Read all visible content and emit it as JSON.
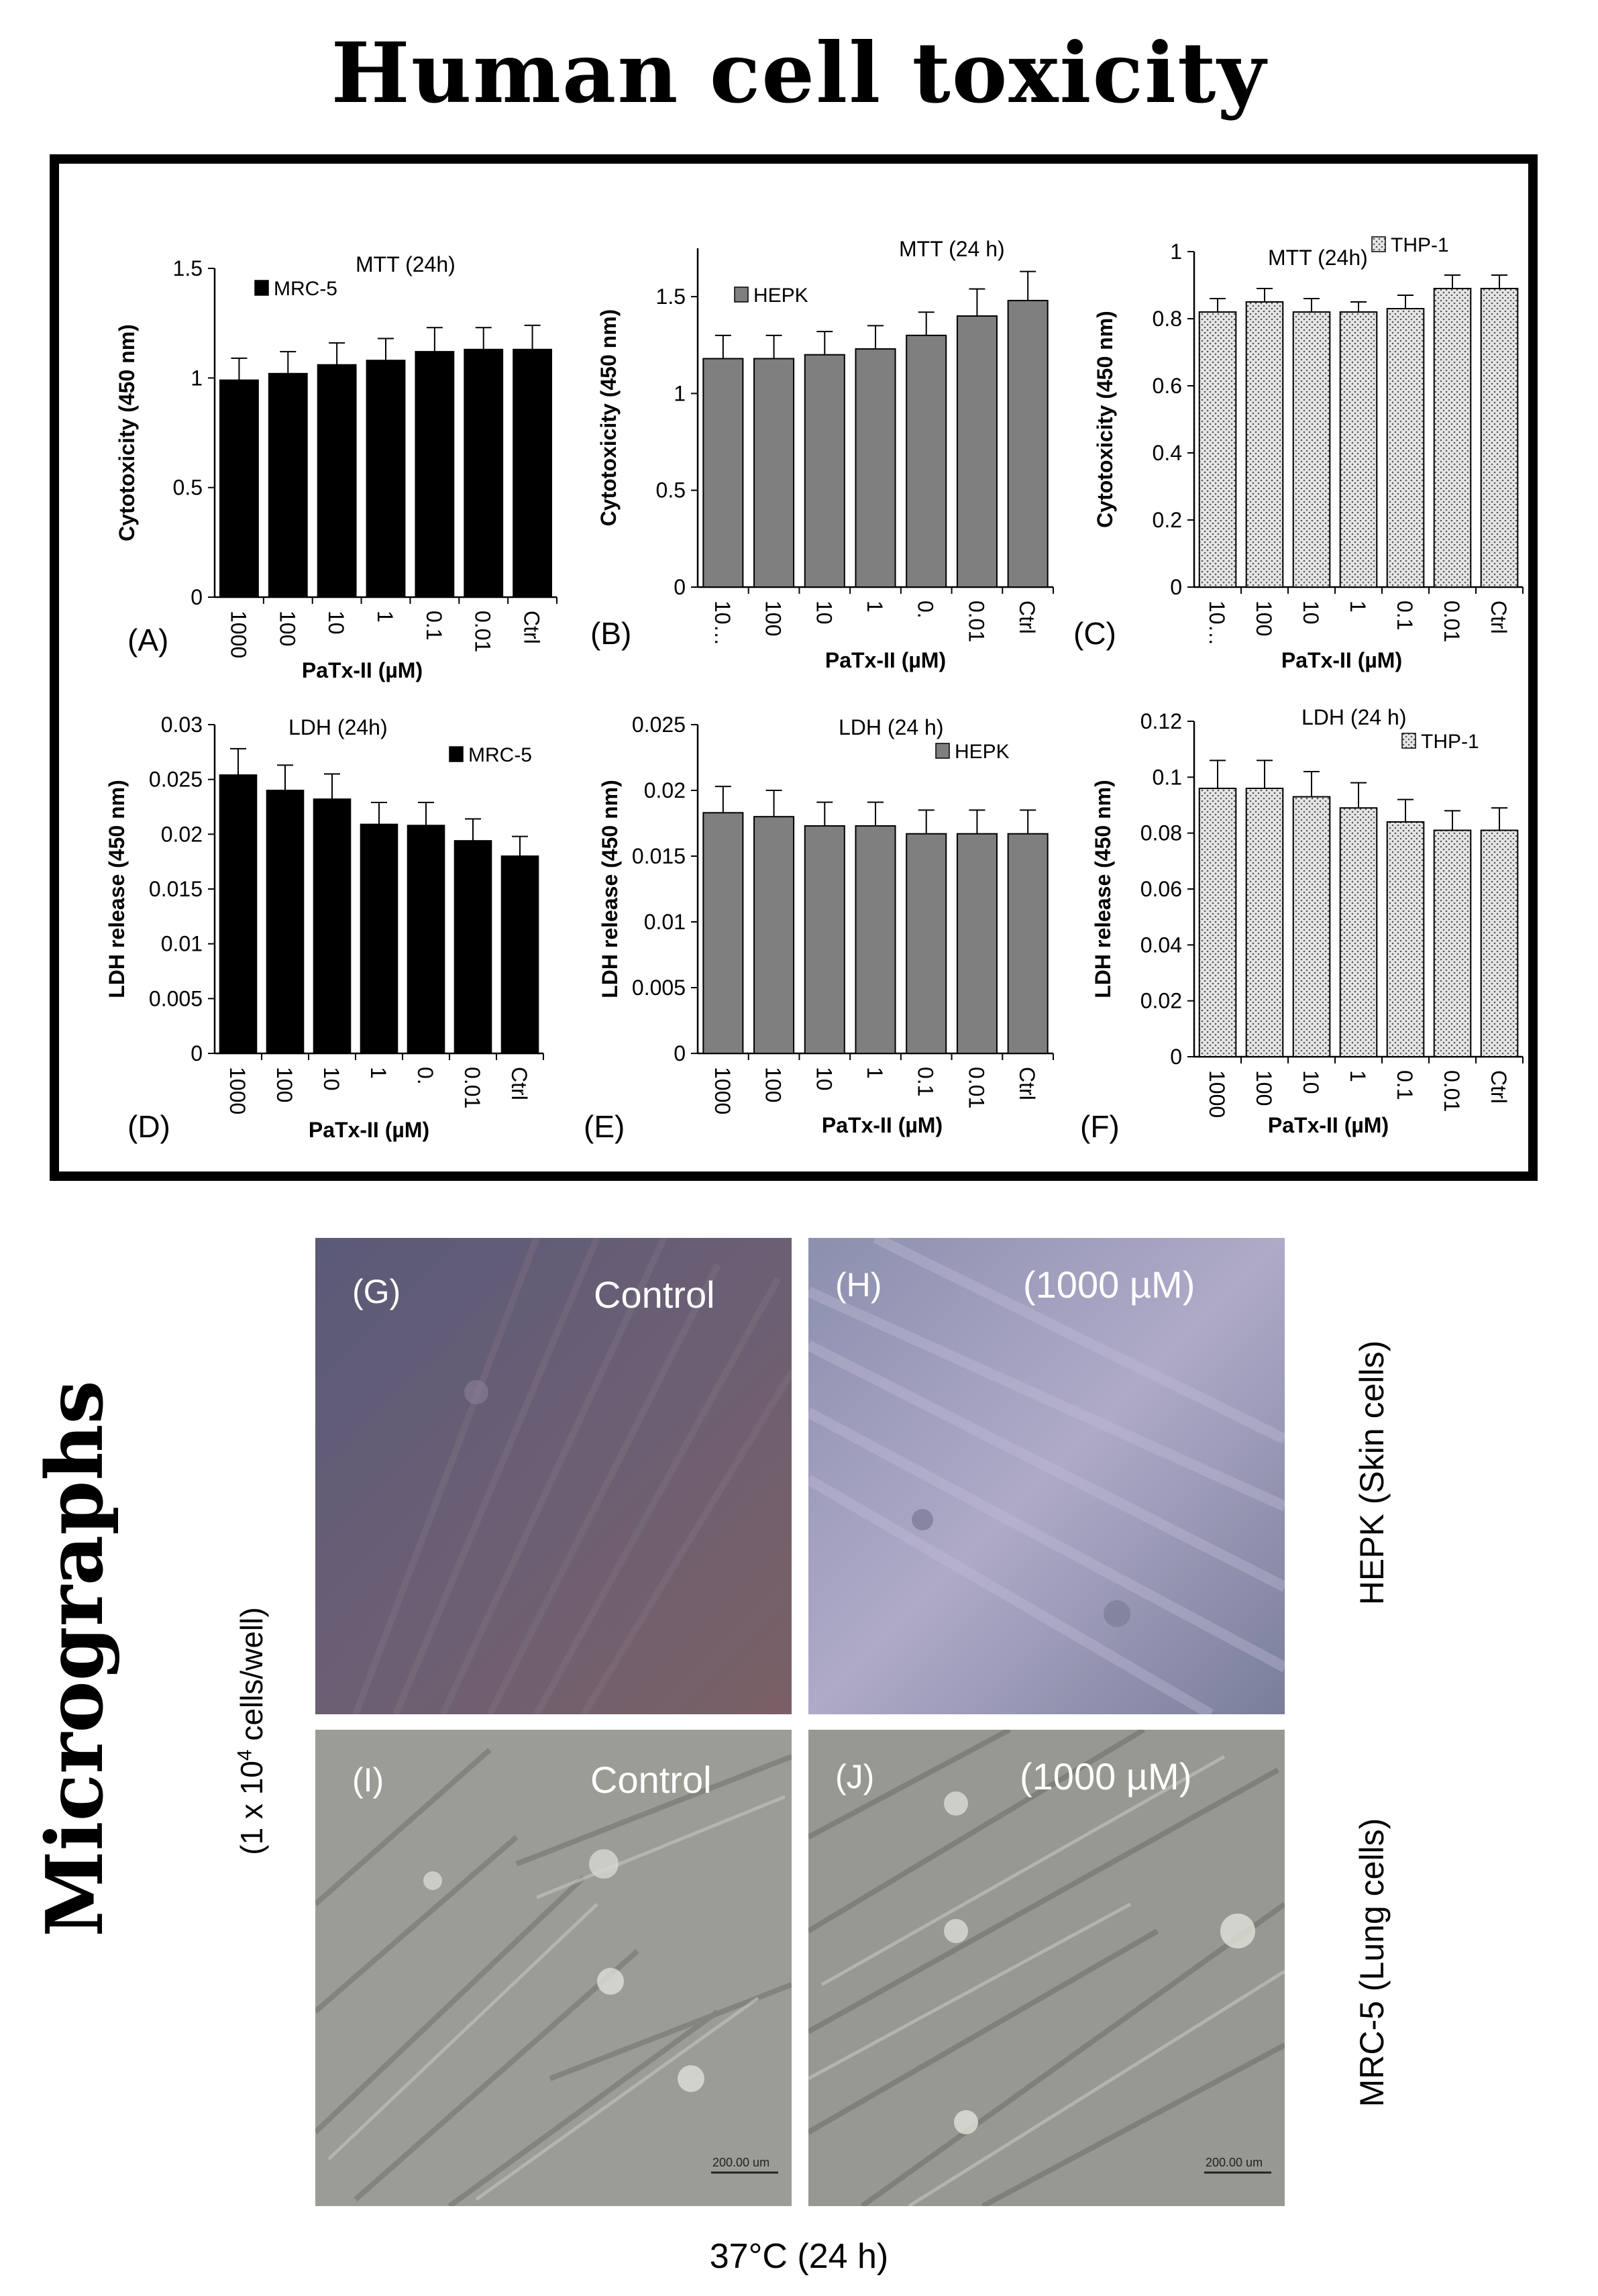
{
  "title": "Human cell toxicity",
  "chart_data": [
    {
      "id": "A",
      "panel_label": "(A)",
      "type": "bar",
      "title": "MTT (24h)",
      "xlabel": "PaTx-II (µM)",
      "ylabel": "Cytotoxicity (450 nm)",
      "categories": [
        "1000",
        "100",
        "10",
        "1",
        "0.1",
        "0.01",
        "Ctrl"
      ],
      "series": [
        {
          "name": "MRC-5",
          "values": [
            0.99,
            1.02,
            1.06,
            1.08,
            1.12,
            1.13,
            1.13
          ],
          "errors": [
            0.1,
            0.1,
            0.1,
            0.1,
            0.11,
            0.1,
            0.11
          ]
        }
      ],
      "ylim": [
        0,
        1.5
      ],
      "yticks": [
        "0",
        "0.5",
        "1",
        "1.5"
      ],
      "yticks_values": [
        0,
        0.5,
        1,
        1.5
      ],
      "legend_position": "top-left",
      "grid": false,
      "colors": {
        "bar": "#000000",
        "border": "#000000"
      }
    },
    {
      "id": "B",
      "panel_label": "(B)",
      "type": "bar",
      "title": "MTT (24 h)",
      "xlabel": "PaTx-II (µM)",
      "ylabel": "Cytotoxicity (450 nm)",
      "categories": [
        "10…",
        "100",
        "10",
        "1",
        "0.",
        "0.01",
        "Ctrl"
      ],
      "series": [
        {
          "name": "HEPK",
          "values": [
            1.18,
            1.18,
            1.2,
            1.23,
            1.3,
            1.4,
            1.48
          ],
          "errors": [
            0.12,
            0.12,
            0.12,
            0.12,
            0.12,
            0.14,
            0.15
          ]
        }
      ],
      "ylim": [
        0,
        1.75
      ],
      "yticks": [
        "0",
        "0.5",
        "1",
        "1.5"
      ],
      "yticks_values": [
        0,
        0.5,
        1,
        1.5
      ],
      "legend_position": "top-left",
      "grid": false,
      "colors": {
        "bar": "#7f7f7f",
        "border": "#000000"
      }
    },
    {
      "id": "C",
      "panel_label": "(C)",
      "type": "bar",
      "title": "MTT (24h)",
      "xlabel": "PaTx-II (µM)",
      "ylabel": "Cytotoxicity (450 nm)",
      "categories": [
        "10…",
        "100",
        "10",
        "1",
        "0.1",
        "0.01",
        "Ctrl"
      ],
      "series": [
        {
          "name": "THP-1",
          "values": [
            0.82,
            0.85,
            0.82,
            0.82,
            0.83,
            0.89,
            0.89
          ],
          "errors": [
            0.04,
            0.04,
            0.04,
            0.03,
            0.04,
            0.04,
            0.04
          ]
        }
      ],
      "ylim": [
        0,
        1
      ],
      "yticks": [
        "0",
        "0.2",
        "0.4",
        "0.6",
        "0.8",
        "1"
      ],
      "yticks_values": [
        0,
        0.2,
        0.4,
        0.6,
        0.8,
        1
      ],
      "legend_position": "top-right",
      "grid": false,
      "colors": {
        "bar": "dotted",
        "border": "#000000"
      }
    },
    {
      "id": "D",
      "panel_label": "(D)",
      "type": "bar",
      "title": "LDH (24h)",
      "xlabel": "PaTx-II (µM)",
      "ylabel": "LDH release (450 nm)",
      "categories": [
        "1000",
        "100",
        "10",
        "1",
        "0.",
        "0.01",
        "Ctrl"
      ],
      "series": [
        {
          "name": "MRC-5",
          "values": [
            0.0254,
            0.024,
            0.0232,
            0.0209,
            0.0208,
            0.0194,
            0.018
          ],
          "errors": [
            0.0024,
            0.0023,
            0.0023,
            0.002,
            0.0021,
            0.002,
            0.0018
          ]
        }
      ],
      "ylim": [
        0,
        0.03
      ],
      "yticks": [
        "0",
        "0.005",
        "0.01",
        "0.015",
        "0.02",
        "0.025",
        "0.03"
      ],
      "yticks_values": [
        0,
        0.005,
        0.01,
        0.015,
        0.02,
        0.025,
        0.03
      ],
      "legend_position": "top-right",
      "grid": false,
      "colors": {
        "bar": "#000000",
        "border": "#000000"
      }
    },
    {
      "id": "E",
      "panel_label": "(E)",
      "type": "bar",
      "title": "LDH (24 h)",
      "xlabel": "PaTx-II (µM)",
      "ylabel": "LDH release (450 nm)",
      "categories": [
        "1000",
        "100",
        "10",
        "1",
        "0.1",
        "0.01",
        "Ctrl"
      ],
      "series": [
        {
          "name": "HEPK",
          "values": [
            0.0183,
            0.018,
            0.0173,
            0.0173,
            0.0167,
            0.0167,
            0.0167
          ],
          "errors": [
            0.002,
            0.002,
            0.0018,
            0.0018,
            0.0018,
            0.0018,
            0.0018
          ]
        }
      ],
      "ylim": [
        0,
        0.025
      ],
      "yticks": [
        "0",
        "0.005",
        "0.01",
        "0.015",
        "0.02",
        "0.025"
      ],
      "yticks_values": [
        0,
        0.005,
        0.01,
        0.015,
        0.02,
        0.025
      ],
      "legend_position": "top-right",
      "grid": false,
      "colors": {
        "bar": "#7f7f7f",
        "border": "#000000"
      }
    },
    {
      "id": "F",
      "panel_label": "(F)",
      "type": "bar",
      "title": "LDH (24 h)",
      "xlabel": "PaTx-II (µM)",
      "ylabel": "LDH release (450 nm)",
      "categories": [
        "1000",
        "100",
        "10",
        "1",
        "0.1",
        "0.01",
        "Ctrl"
      ],
      "series": [
        {
          "name": "THP-1",
          "values": [
            0.096,
            0.096,
            0.093,
            0.089,
            0.084,
            0.081,
            0.081
          ],
          "errors": [
            0.01,
            0.01,
            0.009,
            0.009,
            0.008,
            0.007,
            0.008
          ]
        }
      ],
      "ylim": [
        0,
        0.12
      ],
      "yticks": [
        "0",
        "0.02",
        "0.04",
        "0.06",
        "0.08",
        "0.1",
        "0.12"
      ],
      "yticks_values": [
        0,
        0.02,
        0.04,
        0.06,
        0.08,
        0.1,
        0.12
      ],
      "legend_position": "top-right",
      "grid": false,
      "colors": {
        "bar": "dotted",
        "border": "#000000"
      }
    }
  ],
  "micrographs": {
    "title": "Micrographs",
    "density_label_prefix": "(1 x 10",
    "density_label_exp": "4",
    "density_label_suffix": " cells/well)",
    "hepk_label": "HEPK (Skin cells)",
    "mrc5_label": "MRC-5 (Lung cells)",
    "temp_label": "37°C (24 h)",
    "panels": [
      {
        "tag": "(G)",
        "condition": "Control",
        "scale": ""
      },
      {
        "tag": "(H)",
        "condition": "(1000 µM)",
        "scale": ""
      },
      {
        "tag": "(I)",
        "condition": "Control",
        "scale": "200.00 um"
      },
      {
        "tag": "(J)",
        "condition": "(1000 µM)",
        "scale": "200.00 um"
      }
    ]
  }
}
